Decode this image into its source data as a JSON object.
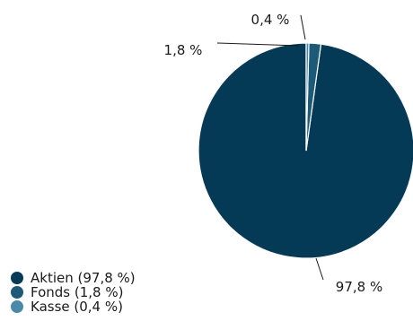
{
  "chart_data": {
    "type": "pie",
    "slices": [
      {
        "name": "Aktien",
        "value": 97.8,
        "label": "97,8 %",
        "legend": "Aktien (97,8 %)",
        "color": "#053a57"
      },
      {
        "name": "Fonds",
        "value": 1.8,
        "label": "1,8 %",
        "legend": "Fonds (1,8 %)",
        "color": "#1c5a78"
      },
      {
        "name": "Kasse",
        "value": 0.4,
        "label": "0,4 %",
        "legend": "Kasse (0,4 %)",
        "color": "#4a8aa8"
      }
    ],
    "start_angle_deg": 0,
    "direction": "counterclockwise",
    "legend_position": "bottom-left",
    "title": ""
  }
}
